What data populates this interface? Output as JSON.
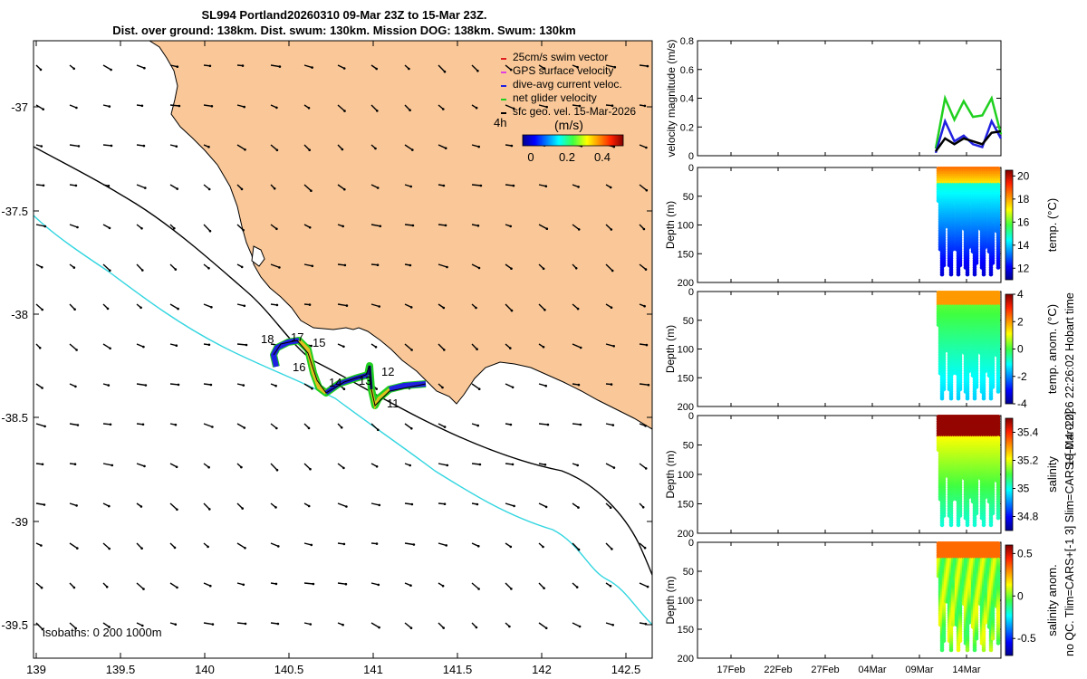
{
  "header": {
    "title_line1": "SL994 Portland20260310 09-Mar 23Z to 15-Mar 23Z.",
    "title_line2": "Dist. over ground: 138km. Dist. swum: 130km. Mission DOG: 138km. Swum: 130km"
  },
  "map": {
    "x_ticks": [
      "139",
      "139.5",
      "140",
      "140.5",
      "141",
      "141.5",
      "142",
      "142.5"
    ],
    "y_ticks": [
      "-37",
      "-37.5",
      "-38",
      "-38.5",
      "-39",
      "-39.5"
    ],
    "isobaths_label": "isobaths: 0   200   1000m",
    "legend": [
      {
        "label": "25cm/s swim vector",
        "color": "#e02020"
      },
      {
        "label": "GPS surface velocity",
        "color": "#e040e0"
      },
      {
        "label": "dive-avg current veloc.",
        "color": "#2020e0"
      },
      {
        "label": "net glider velocity",
        "color": "#20d020"
      },
      {
        "label": "sfc geo. vel. 15-Mar-2026",
        "color": "#000000"
      }
    ],
    "scale_label": "4h",
    "colorbar_label": "(m/s)",
    "colorbar_ticks": [
      "0",
      "0.2",
      "0.4"
    ],
    "waypoint_labels": [
      "18",
      "17",
      "15",
      "16",
      "14",
      "13",
      "12",
      "11"
    ],
    "colors": {
      "land": "#fac898",
      "isobath_200": "#000000",
      "isobath_1000": "#33d6e0"
    }
  },
  "side_axis_text": {
    "right_top": "19-Mar-2026 22:26:02 Hobart time",
    "right_bottom": "no QC. Tlim=CARS+[-1 3] Slim=CARS+[-0.4 0.2]"
  },
  "chart_data": [
    {
      "type": "line",
      "ylabel": "velocity magnitude (m/s)",
      "ylim": [
        0,
        0.8
      ],
      "y_ticks": [
        "0",
        "0.2",
        "0.4",
        "0.6",
        "0.8"
      ],
      "x_dates": [
        "2026-03-09",
        "2026-03-10",
        "2026-03-11",
        "2026-03-12",
        "2026-03-13",
        "2026-03-14",
        "2026-03-15",
        "2026-03-16"
      ],
      "series": [
        {
          "color": "#20d020",
          "values": [
            0.05,
            0.4,
            0.25,
            0.38,
            0.27,
            0.28,
            0.4,
            0.15
          ]
        },
        {
          "color": "#2020e0",
          "values": [
            0.02,
            0.24,
            0.1,
            0.14,
            0.08,
            0.06,
            0.24,
            0.12
          ]
        },
        {
          "color": "#000000",
          "values": [
            0.03,
            0.12,
            0.08,
            0.12,
            0.1,
            0.08,
            0.16,
            0.17
          ]
        }
      ]
    },
    {
      "type": "scatter",
      "ylabel": "Depth (m)",
      "ylim": [
        0,
        200
      ],
      "y_ticks": [
        "0",
        "50",
        "100",
        "150",
        "200"
      ],
      "colorbar_label": "temp. (°C)",
      "colorbar_ticks": [
        "12",
        "14",
        "16",
        "18",
        "20"
      ],
      "clim": [
        11,
        20.5
      ]
    },
    {
      "type": "scatter",
      "ylabel": "Depth (m)",
      "ylim": [
        0,
        200
      ],
      "y_ticks": [
        "0",
        "50",
        "100",
        "150",
        "200"
      ],
      "colorbar_label": "temp. anom. (°C)",
      "colorbar_ticks": [
        "-4",
        "-2",
        "0",
        "2",
        "4"
      ],
      "clim": [
        -4,
        4
      ]
    },
    {
      "type": "scatter",
      "ylabel": "Depth (m)",
      "ylim": [
        0,
        200
      ],
      "y_ticks": [
        "0",
        "50",
        "100",
        "150",
        "200"
      ],
      "colorbar_label": "salinity",
      "colorbar_ticks": [
        "34.8",
        "35",
        "35.2",
        "35.4"
      ],
      "clim": [
        34.7,
        35.5
      ]
    },
    {
      "type": "scatter",
      "ylabel": "Depth (m)",
      "ylim": [
        0,
        200
      ],
      "y_ticks": [
        "0",
        "50",
        "100",
        "150",
        "200"
      ],
      "colorbar_label": "salinity anom.",
      "colorbar_ticks": [
        "-0.5",
        "0",
        "0.5"
      ],
      "clim": [
        -0.7,
        0.6
      ],
      "x_ticks": [
        "17Feb",
        "22Feb",
        "27Feb",
        "04Mar",
        "09Mar",
        "14Mar"
      ]
    }
  ]
}
